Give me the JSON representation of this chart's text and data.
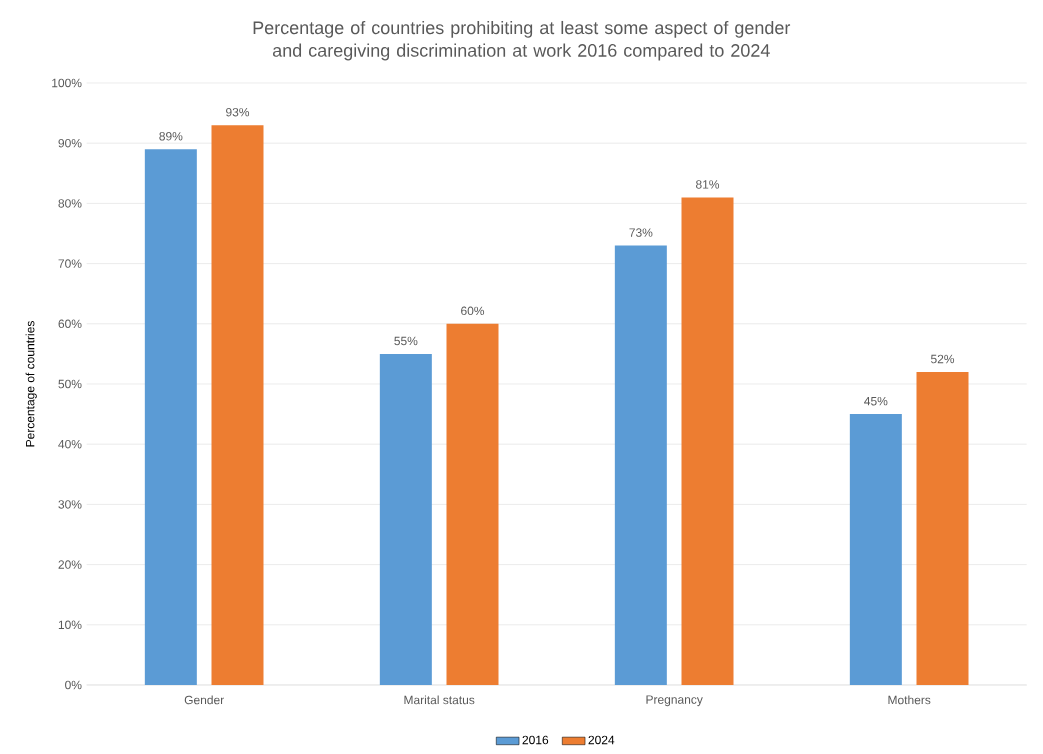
{
  "chart_data": {
    "type": "bar",
    "title": "Percentage of countries prohibiting at least some aspect of gender and caregiving discrimination at work 2016 compared to 2024",
    "ylabel": "Percentage of countries",
    "categories": [
      "Gender",
      "Marital status",
      "Pregnancy",
      "Mothers"
    ],
    "series": [
      {
        "name": "2016",
        "color": "#5b9bd5",
        "values": [
          89,
          55,
          73,
          45
        ],
        "value_labels": [
          "89%",
          "55%",
          "73%",
          "45%"
        ]
      },
      {
        "name": "2024",
        "color": "#ed7d31",
        "values": [
          93,
          60,
          81,
          52
        ],
        "value_labels": [
          "93%",
          "60%",
          "81%",
          "52%"
        ]
      }
    ],
    "ylim": [
      0,
      100
    ],
    "yticks": [
      {
        "value": 0,
        "label": "0%"
      },
      {
        "value": 10,
        "label": "10%"
      },
      {
        "value": 20,
        "label": "20%"
      },
      {
        "value": 30,
        "label": "30%"
      },
      {
        "value": 40,
        "label": "40%"
      },
      {
        "value": 50,
        "label": "50%"
      },
      {
        "value": 60,
        "label": "60%"
      },
      {
        "value": 70,
        "label": "70%"
      },
      {
        "value": 80,
        "label": "80%"
      },
      {
        "value": 90,
        "label": "90%"
      },
      {
        "value": 100,
        "label": "100%"
      }
    ],
    "grid": "y",
    "legend": "bottom"
  }
}
